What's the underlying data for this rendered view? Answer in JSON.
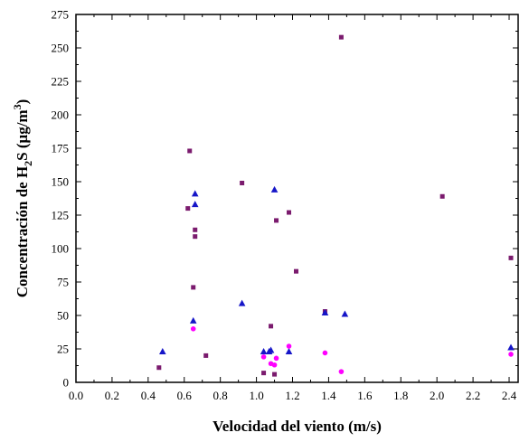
{
  "chart_data": {
    "type": "scatter",
    "xlabel": "Velocidad del viento (m/s)",
    "ylabel_main": "Concentración de H",
    "ylabel_sub": "2",
    "ylabel_mid": "S (μg/m",
    "ylabel_sup": "3",
    "ylabel_end": ")",
    "xlim": [
      0.0,
      2.45
    ],
    "ylim": [
      0,
      275
    ],
    "xticks": [
      "0.0",
      "0.2",
      "0.4",
      "0.6",
      "0.8",
      "1.0",
      "1.2",
      "1.4",
      "1.6",
      "1.8",
      "2.0",
      "2.2",
      "2.4"
    ],
    "xtick_values": [
      0.0,
      0.2,
      0.4,
      0.6,
      0.8,
      1.0,
      1.2,
      1.4,
      1.6,
      1.8,
      2.0,
      2.2,
      2.4
    ],
    "yticks": [
      "0",
      "25",
      "50",
      "75",
      "100",
      "125",
      "150",
      "175",
      "200",
      "225",
      "250",
      "275"
    ],
    "ytick_values": [
      0,
      25,
      50,
      75,
      100,
      125,
      150,
      175,
      200,
      225,
      250,
      275
    ],
    "series": [
      {
        "marker": "square",
        "color": "#7b1b6e",
        "points": [
          {
            "x": 0.46,
            "y": 11
          },
          {
            "x": 0.62,
            "y": 130
          },
          {
            "x": 0.63,
            "y": 173
          },
          {
            "x": 0.65,
            "y": 71
          },
          {
            "x": 0.66,
            "y": 114
          },
          {
            "x": 0.66,
            "y": 109
          },
          {
            "x": 0.72,
            "y": 20
          },
          {
            "x": 0.92,
            "y": 149
          },
          {
            "x": 1.04,
            "y": 7
          },
          {
            "x": 1.08,
            "y": 42
          },
          {
            "x": 1.1,
            "y": 6
          },
          {
            "x": 1.11,
            "y": 121
          },
          {
            "x": 1.18,
            "y": 127
          },
          {
            "x": 1.22,
            "y": 83
          },
          {
            "x": 1.38,
            "y": 53
          },
          {
            "x": 1.47,
            "y": 258
          },
          {
            "x": 2.03,
            "y": 139
          },
          {
            "x": 2.41,
            "y": 93
          }
        ]
      },
      {
        "marker": "triangle",
        "color": "#1616c8",
        "points": [
          {
            "x": 0.48,
            "y": 23
          },
          {
            "x": 0.65,
            "y": 46
          },
          {
            "x": 0.66,
            "y": 141
          },
          {
            "x": 0.66,
            "y": 133
          },
          {
            "x": 0.92,
            "y": 59
          },
          {
            "x": 1.04,
            "y": 23
          },
          {
            "x": 1.07,
            "y": 23
          },
          {
            "x": 1.08,
            "y": 24
          },
          {
            "x": 1.1,
            "y": 144
          },
          {
            "x": 1.18,
            "y": 23
          },
          {
            "x": 1.38,
            "y": 52
          },
          {
            "x": 1.49,
            "y": 51
          },
          {
            "x": 2.41,
            "y": 26
          }
        ]
      },
      {
        "marker": "circle",
        "color": "#ff00ff",
        "points": [
          {
            "x": 0.65,
            "y": 40
          },
          {
            "x": 1.04,
            "y": 19
          },
          {
            "x": 1.08,
            "y": 14
          },
          {
            "x": 1.1,
            "y": 13
          },
          {
            "x": 1.11,
            "y": 18
          },
          {
            "x": 1.18,
            "y": 27
          },
          {
            "x": 1.38,
            "y": 22
          },
          {
            "x": 1.47,
            "y": 8
          },
          {
            "x": 2.41,
            "y": 21
          }
        ]
      }
    ]
  }
}
